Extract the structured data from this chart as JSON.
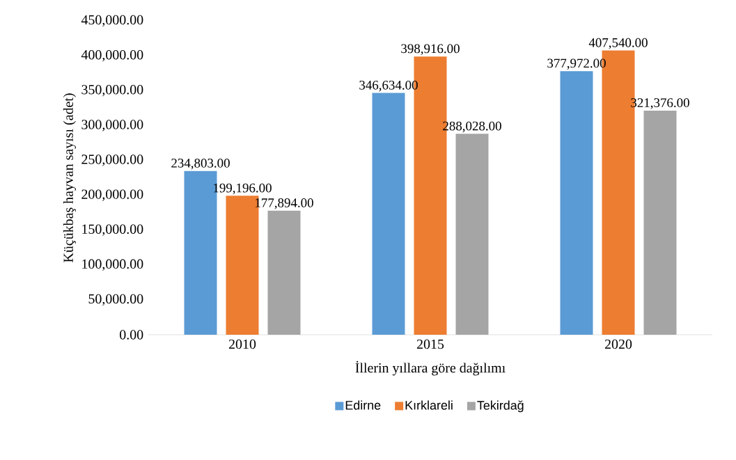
{
  "chart_data": {
    "type": "bar",
    "xlabel": "İllerin yıllara göre dağılımı",
    "ylabel": "Küçükbaş hayvan sayısı (adet)",
    "categories": [
      "2010",
      "2015",
      "2020"
    ],
    "series": [
      {
        "name": "Edirne",
        "color": "#5b9bd5",
        "values": [
          234803,
          346634,
          377972
        ],
        "value_labels": [
          "234,803.00",
          "346,634.00",
          "377,972.00"
        ]
      },
      {
        "name": "Kırklareli",
        "color": "#ed7d31",
        "values": [
          199196,
          398916,
          407540
        ],
        "value_labels": [
          "199,196.00",
          "398,916.00",
          "407,540.00"
        ]
      },
      {
        "name": "Tekirdağ",
        "color": "#a5a5a5",
        "values": [
          177894,
          288028,
          321376
        ],
        "value_labels": [
          "177,894.00",
          "288,028.00",
          "321,376.00"
        ]
      }
    ],
    "ylim": [
      0,
      450000
    ],
    "yticks": [
      {
        "value": 0,
        "label": "0.00"
      },
      {
        "value": 50000,
        "label": "50,000.00"
      },
      {
        "value": 100000,
        "label": "100,000.00"
      },
      {
        "value": 150000,
        "label": "150,000.00"
      },
      {
        "value": 200000,
        "label": "200,000.00"
      },
      {
        "value": 250000,
        "label": "250,000.00"
      },
      {
        "value": 300000,
        "label": "300,000.00"
      },
      {
        "value": 350000,
        "label": "350,000.00"
      },
      {
        "value": 400000,
        "label": "400,000.00"
      },
      {
        "value": 450000,
        "label": "450,000.00"
      }
    ],
    "grid": false,
    "legend": "bottom"
  }
}
